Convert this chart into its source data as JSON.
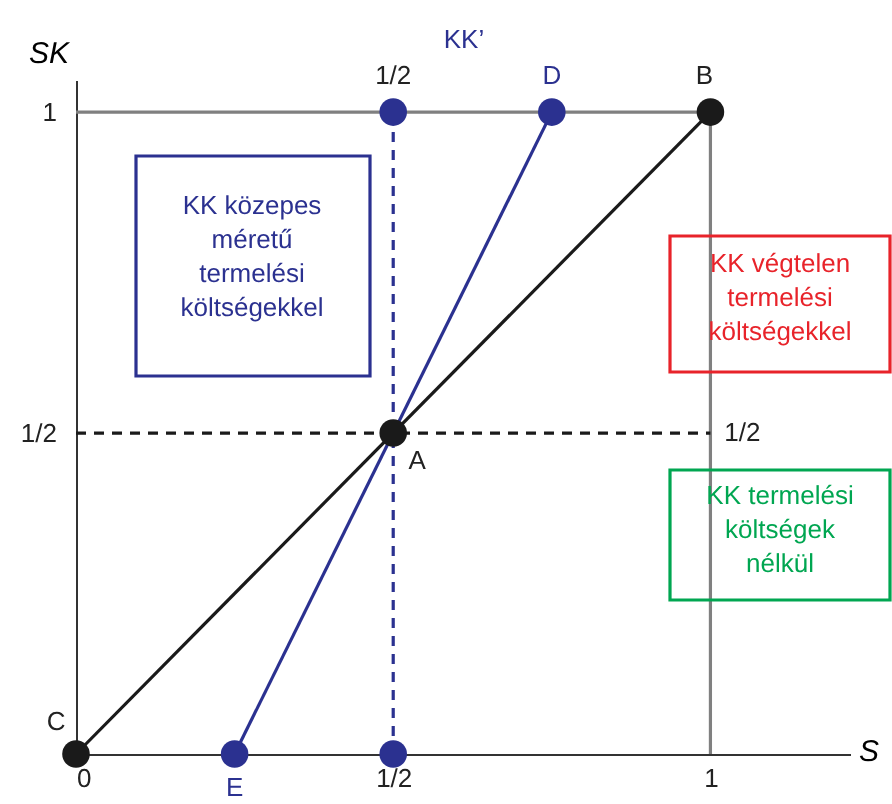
{
  "chart_data": {
    "type": "line",
    "xlabel": "S",
    "ylabel": "SK",
    "xlim": [
      0,
      1.22
    ],
    "ylim": [
      0,
      1.05
    ],
    "xticks": [
      0,
      {
        "value": 0.5,
        "label": "1/2"
      },
      1
    ],
    "yticks": [
      {
        "value": 0.5,
        "label": "1/2"
      },
      1
    ],
    "grid": false,
    "line_style": "solid",
    "series": [
      {
        "color": "#808080",
        "x": [
          0,
          1,
          1
        ],
        "values": [
          1,
          1,
          0
        ]
      },
      {
        "color": "#1a1a1a",
        "line_style": "dashed",
        "x": [
          0,
          1
        ],
        "values": [
          0.5,
          0.5
        ]
      },
      {
        "color": "#2b3190",
        "line_style": "dashed",
        "x": [
          0.5,
          0.5
        ],
        "values": [
          0,
          1
        ]
      },
      {
        "color": "#1a1a1a",
        "x": [
          0,
          1
        ],
        "values": [
          0,
          1
        ]
      },
      {
        "color": "#2b3190",
        "x": [
          0.25,
          0.75
        ],
        "values": [
          0,
          1
        ]
      },
      {
        "type": "scatter",
        "color": "#1a1a1a",
        "marker": "circle",
        "x": [
          0,
          0.5,
          1
        ],
        "values": [
          0,
          0.5,
          1
        ]
      },
      {
        "type": "scatter",
        "color": "#2b3190",
        "marker": "circle",
        "x": [
          0.25,
          0.5,
          0.75,
          0.5
        ],
        "values": [
          0,
          0,
          1,
          1
        ]
      }
    ],
    "annotations": [
      {
        "text": "C",
        "x": 0,
        "y": 0
      },
      {
        "text": "A",
        "x": 0.5,
        "y": 0.5
      },
      {
        "text": "B",
        "x": 1,
        "y": 1
      },
      {
        "text": "E",
        "x": 0.25,
        "y": 0
      },
      {
        "text": "D",
        "x": 0.75,
        "y": 1
      },
      {
        "text": "1/2",
        "x": 0.5,
        "y": 1
      },
      {
        "text": "1/2",
        "x": 1,
        "y": 0.5
      },
      "KK’",
      "KK közepes\nméretű\ntermelési\nköltségekkel",
      "KK végtelen\ntermelési\nköltségekkel",
      "KK termelési\nköltségek\nnélkül"
    ]
  }
}
